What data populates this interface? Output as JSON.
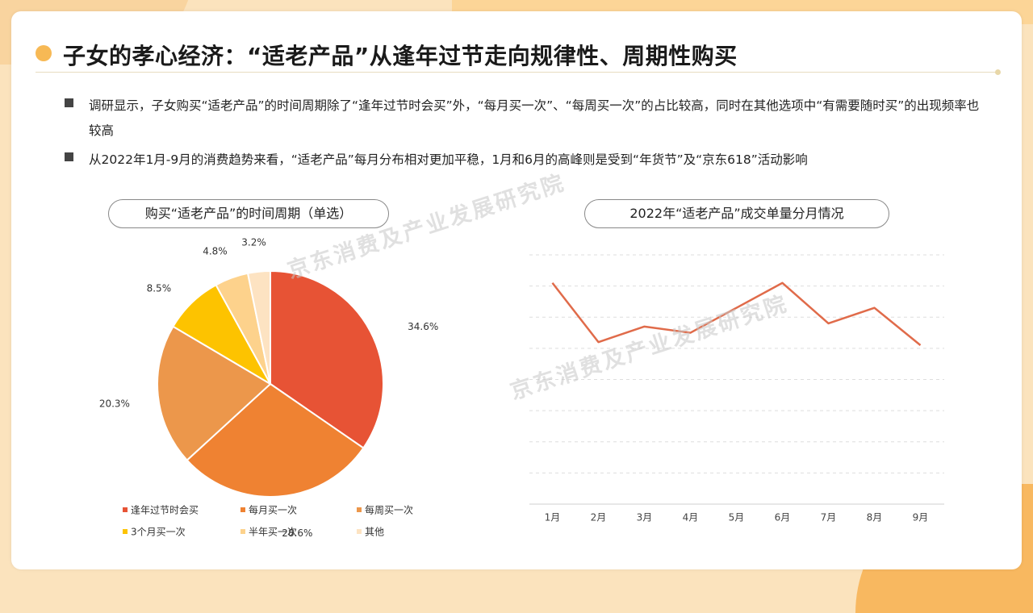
{
  "title": "子女的孝心经济：“适老产品”从逢年过节走向规律性、周期性购买",
  "bullets": [
    "调研显示，子女购买“适老产品”的时间周期除了“逢年过节时会买”外，“每月买一次”、“每周买一次”的占比较高，同时在其他选项中“有需要随时买”的出现频率也较高",
    "从2022年1月-9月的消费趋势来看，“适老产品”每月分布相对更加平稳，1月和6月的高峰则是受到“年货节”及“京东618”活动影响"
  ],
  "watermark": "京东消费及产业发展研究院",
  "chart_data": [
    {
      "type": "pie",
      "title": "购买“适老产品”的时间周期（单选）",
      "categories": [
        "逢年过节时会买",
        "每月买一次",
        "每周买一次",
        "3个月买一次",
        "半年买一次",
        "其他"
      ],
      "values": [
        34.6,
        28.6,
        20.3,
        8.5,
        4.8,
        3.2
      ],
      "labels": [
        "34.6%",
        "28.6%",
        "20.3%",
        "8.5%",
        "4.8%",
        "3.2%"
      ],
      "colors": [
        "#e75335",
        "#ef8232",
        "#ec974b",
        "#fdc300",
        "#fdd28c",
        "#fde3c2"
      ],
      "legend": "bottom"
    },
    {
      "type": "line",
      "title": "2022年“适老产品”成交单量分月情况",
      "x": [
        "1月",
        "2月",
        "3月",
        "4月",
        "5月",
        "6月",
        "7月",
        "8月",
        "9月"
      ],
      "series": [
        {
          "values": [
            7.1,
            5.2,
            5.7,
            5.5,
            6.3,
            7.1,
            5.8,
            6.3,
            5.1
          ],
          "color": "#e06b4a"
        }
      ],
      "ylim": [
        0,
        8
      ],
      "grid": true,
      "grid_style": "dashed"
    }
  ]
}
